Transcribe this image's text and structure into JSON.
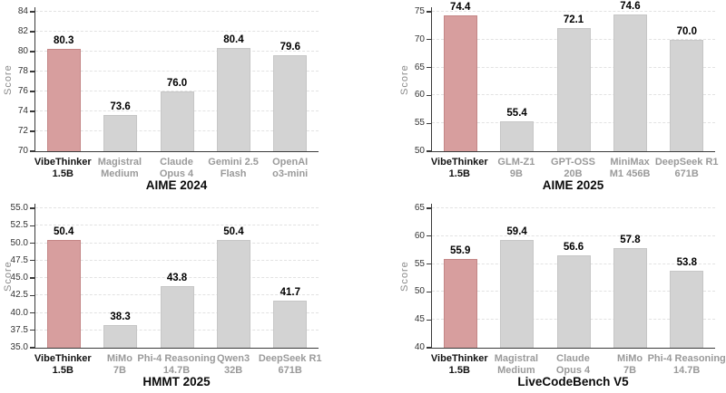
{
  "colors": {
    "highlight_bar": "#d79e9e",
    "default_bar": "#d3d3d3",
    "muted_label": "#9a9a9a",
    "highlight_label": "#111111",
    "gridline": "#e2e2e2",
    "axis_spine": "#3a3a3a"
  },
  "chart_data": [
    {
      "type": "bar",
      "title": "AIME 2024",
      "ylabel": "Score",
      "ylim": [
        70,
        84
      ],
      "grid": "dashed-horizontal",
      "legend": "none",
      "ytick_values": [
        70,
        72,
        74,
        76,
        78,
        80,
        82,
        84
      ],
      "ytick_labels": [
        "70",
        "72",
        "74",
        "76",
        "78",
        "80",
        "82",
        "84"
      ],
      "categories": [
        [
          "VibeThinker",
          "1.5B"
        ],
        [
          "Magistral",
          "Medium"
        ],
        [
          "Claude",
          "Opus 4"
        ],
        [
          "Gemini 2.5",
          "Flash"
        ],
        [
          "OpenAI",
          "o3-mini"
        ]
      ],
      "values": [
        80.3,
        73.6,
        76.0,
        80.4,
        79.6
      ],
      "value_labels": [
        "80.3",
        "73.6",
        "76.0",
        "80.4",
        "79.6"
      ],
      "highlight_index": 0
    },
    {
      "type": "bar",
      "title": "AIME 2025",
      "ylabel": "Score",
      "ylim": [
        50,
        75
      ],
      "grid": "dashed-horizontal",
      "legend": "none",
      "ytick_values": [
        50,
        55,
        60,
        65,
        70,
        75
      ],
      "ytick_labels": [
        "50",
        "55",
        "60",
        "65",
        "70",
        "75"
      ],
      "categories": [
        [
          "VibeThinker",
          "1.5B"
        ],
        [
          "GLM-Z1",
          "9B"
        ],
        [
          "GPT-OSS",
          "20B"
        ],
        [
          "MiniMax",
          "M1 456B"
        ],
        [
          "DeepSeek R1",
          "671B"
        ]
      ],
      "values": [
        74.4,
        55.4,
        72.1,
        74.6,
        70.0
      ],
      "value_labels": [
        "74.4",
        "55.4",
        "72.1",
        "74.6",
        "70.0"
      ],
      "highlight_index": 0
    },
    {
      "type": "bar",
      "title": "HMMT 2025",
      "ylabel": "Score",
      "ylim": [
        35,
        55
      ],
      "grid": "dashed-horizontal",
      "legend": "none",
      "ytick_values": [
        35,
        37.5,
        40,
        42.5,
        45,
        47.5,
        50,
        52.5,
        55
      ],
      "ytick_labels": [
        "35.0",
        "37.5",
        "40.0",
        "42.5",
        "45.0",
        "47.5",
        "50.0",
        "52.5",
        "55.0"
      ],
      "categories": [
        [
          "VibeThinker",
          "1.5B"
        ],
        [
          "MiMo",
          "7B"
        ],
        [
          "Phi-4 Reasoning",
          "14.7B"
        ],
        [
          "Qwen3",
          "32B"
        ],
        [
          "DeepSeek R1",
          "671B"
        ]
      ],
      "values": [
        50.4,
        38.3,
        43.8,
        50.4,
        41.7
      ],
      "value_labels": [
        "50.4",
        "38.3",
        "43.8",
        "50.4",
        "41.7"
      ],
      "highlight_index": 0
    },
    {
      "type": "bar",
      "title": "LiveCodeBench V5",
      "ylabel": "Score",
      "ylim": [
        40,
        65
      ],
      "grid": "dashed-horizontal",
      "legend": "none",
      "ytick_values": [
        40,
        45,
        50,
        55,
        60,
        65
      ],
      "ytick_labels": [
        "40",
        "45",
        "50",
        "55",
        "60",
        "65"
      ],
      "categories": [
        [
          "VibeThinker",
          "1.5B"
        ],
        [
          "Magistral",
          "Medium"
        ],
        [
          "Claude",
          "Opus 4"
        ],
        [
          "MiMo",
          "7B"
        ],
        [
          "Phi-4 Reasoning",
          "14.7B"
        ]
      ],
      "values": [
        55.9,
        59.4,
        56.6,
        57.8,
        53.8
      ],
      "value_labels": [
        "55.9",
        "59.4",
        "56.6",
        "57.8",
        "53.8"
      ],
      "highlight_index": 0
    }
  ]
}
